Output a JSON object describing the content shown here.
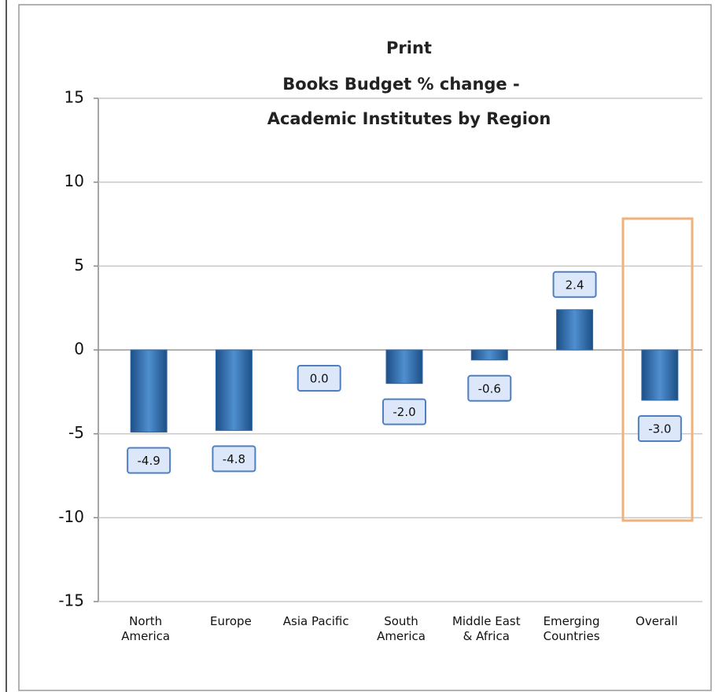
{
  "chart_data": {
    "type": "bar",
    "title": [
      "Print",
      "Books Budget % change -",
      "Academic Institutes by Region"
    ],
    "categories": [
      "North America",
      "Europe",
      "Asia Pacific",
      "South America",
      "Middle East & Africa",
      "Emerging Countries",
      "Overall"
    ],
    "values": [
      -4.9,
      -4.8,
      0.0,
      -2.0,
      -0.6,
      2.4,
      -3.0
    ],
    "value_labels": [
      "-4.9",
      "-4.8",
      "0.0",
      "-2.0",
      "-0.6",
      "2.4",
      "-3.0"
    ],
    "color": "#2f69a8",
    "ylim": [
      -15,
      15
    ],
    "yticks": [
      -15,
      -10,
      -5,
      0,
      5,
      10,
      15
    ],
    "grid": true
  }
}
